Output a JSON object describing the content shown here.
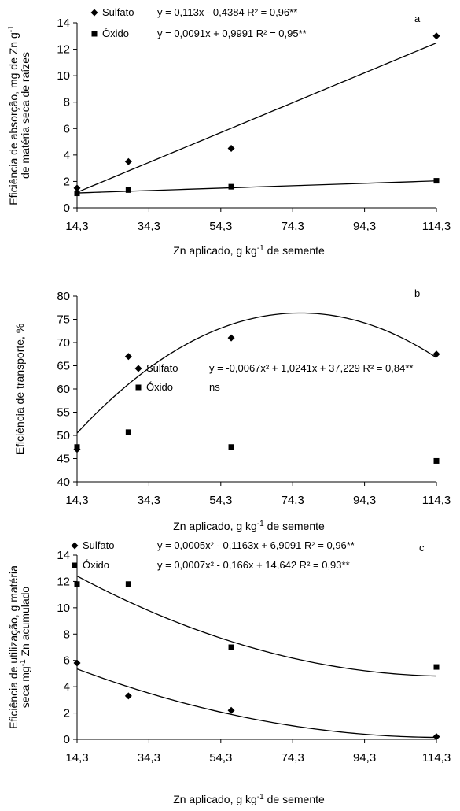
{
  "chart_data": [
    {
      "type": "scatter",
      "panel_label": "a",
      "xlabel_main": "Zn aplicado, g kg",
      "xlabel_sup": "-1",
      "xlabel_end": " de semente",
      "ylabel_line1_main": "Eficiência de absorção, mg de Zn g",
      "ylabel_line1_sup": "-1",
      "ylabel_line2": "de matéria seca de raízes",
      "xlim": [
        14.3,
        114.3
      ],
      "ylim": [
        0,
        14
      ],
      "xticks": [
        "14,3",
        "34,3",
        "54,3",
        "74,3",
        "94,3",
        "114,3"
      ],
      "yticks": [
        "0",
        "2",
        "4",
        "6",
        "8",
        "10",
        "12",
        "14"
      ],
      "series": [
        {
          "name": "Sulfato",
          "marker": "diamond",
          "x": [
            14.3,
            28.6,
            57.2,
            114.3
          ],
          "y": [
            1.5,
            3.5,
            4.5,
            13.0
          ],
          "equation": "y = 0,113x - 0,4384  R² = 0,96**",
          "fit": {
            "kind": "linear",
            "coef": [
              -0.4384,
              0.113
            ]
          }
        },
        {
          "name": "Óxido",
          "marker": "square",
          "x": [
            14.3,
            28.6,
            57.2,
            114.3
          ],
          "y": [
            1.1,
            1.35,
            1.6,
            2.05
          ],
          "equation": "y = 0,0091x + 0,9991  R² = 0,95**",
          "fit": {
            "kind": "linear",
            "coef": [
              0.9991,
              0.0091
            ]
          }
        }
      ]
    },
    {
      "type": "scatter",
      "panel_label": "b",
      "xlabel_main": "Zn aplicado, g kg",
      "xlabel_sup": "-1",
      "xlabel_end": " de semente",
      "ylabel_line1_main": "Eficiência de transporte, %",
      "ylabel_line1_sup": "",
      "ylabel_line2": "",
      "xlim": [
        14.3,
        114.3
      ],
      "ylim": [
        40,
        80
      ],
      "xticks": [
        "14,3",
        "34,3",
        "54,3",
        "74,3",
        "94,3",
        "114,3"
      ],
      "yticks": [
        "40",
        "45",
        "50",
        "55",
        "60",
        "65",
        "70",
        "75",
        "80"
      ],
      "series": [
        {
          "name": "Sulfato",
          "marker": "diamond",
          "x": [
            14.3,
            28.6,
            57.2,
            114.3
          ],
          "y": [
            47.0,
            67.0,
            71.0,
            67.5
          ],
          "equation": "y = -0,0067x² + 1,0241x + 37,229  R² = 0,84**",
          "fit": {
            "kind": "quadratic",
            "coef": [
              37.229,
              1.0241,
              -0.0067
            ]
          }
        },
        {
          "name": "Óxido",
          "marker": "square",
          "x": [
            14.3,
            28.6,
            57.2,
            114.3
          ],
          "y": [
            47.5,
            50.7,
            47.5,
            44.5
          ],
          "equation": "ns",
          "fit": null
        }
      ]
    },
    {
      "type": "scatter",
      "panel_label": "c",
      "xlabel_main": "Zn aplicado, g kg",
      "xlabel_sup": "-1",
      "xlabel_end": " de semente",
      "ylabel_line1_main": "Eficiência de utilização, g matéria",
      "ylabel_line1_sup": "",
      "ylabel_line2_main": "seca mg",
      "ylabel_line2_sup": "-1",
      "ylabel_line2_end": " Zn acumulado",
      "xlim": [
        14.3,
        114.3
      ],
      "ylim": [
        0,
        14
      ],
      "xticks": [
        "14,3",
        "34,3",
        "54,3",
        "74,3",
        "94,3",
        "114,3"
      ],
      "yticks": [
        "0",
        "2",
        "4",
        "6",
        "8",
        "10",
        "12",
        "14"
      ],
      "series": [
        {
          "name": "Sulfato",
          "marker": "diamond",
          "x": [
            14.3,
            28.6,
            57.2,
            114.3
          ],
          "y": [
            5.8,
            3.3,
            2.2,
            0.2
          ],
          "equation": "y = 0,0005x² - 0,1163x + 6,9091  R² = 0,96**",
          "fit": {
            "kind": "quadratic",
            "coef": [
              6.9091,
              -0.1163,
              0.0005
            ]
          }
        },
        {
          "name": "Óxido",
          "marker": "square",
          "x": [
            14.3,
            28.6,
            57.2,
            114.3
          ],
          "y": [
            11.8,
            11.8,
            7.0,
            5.5
          ],
          "equation": "y = 0,0007x² - 0,166x + 14,642  R² = 0,93**",
          "fit": {
            "kind": "quadratic",
            "coef": [
              14.642,
              -0.166,
              0.0007
            ]
          }
        }
      ]
    }
  ]
}
